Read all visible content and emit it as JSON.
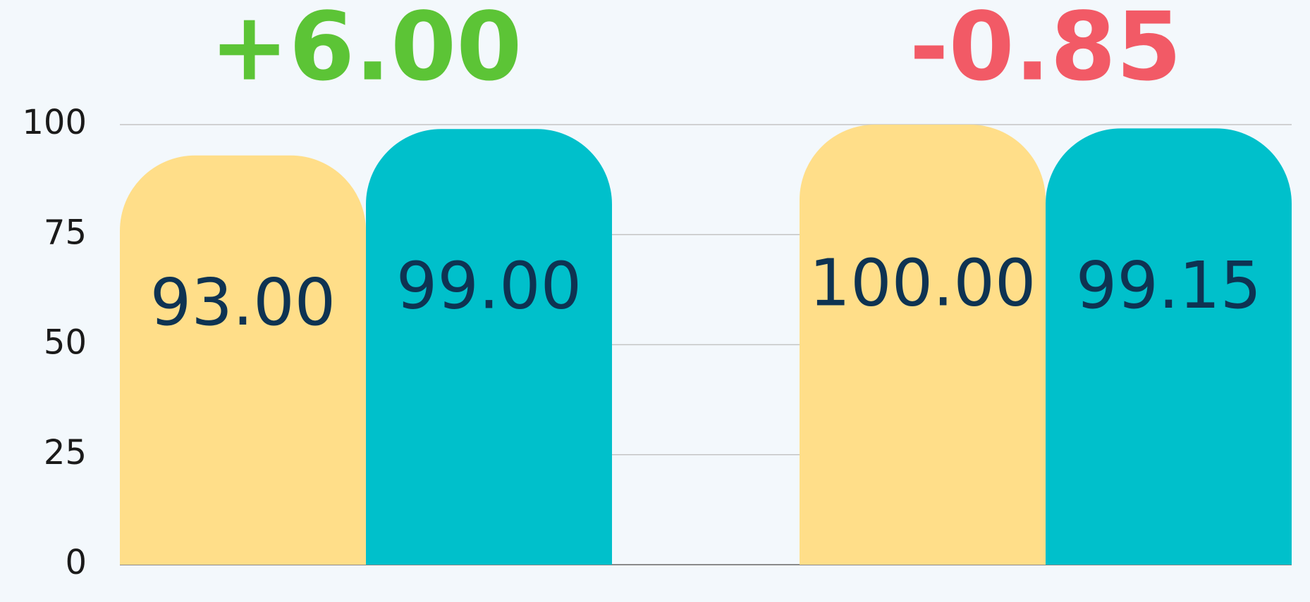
{
  "chart_data": {
    "type": "bar",
    "categories": [
      null,
      null
    ],
    "series": [
      {
        "color": "#ffde89",
        "values": [
          93,
          100
        ],
        "value_labels": [
          "93.00",
          "100.00"
        ]
      },
      {
        "color": "#00c0cb",
        "values": [
          99,
          99.15
        ],
        "value_labels": [
          "99.00",
          "99.15"
        ]
      }
    ],
    "annotations": [
      {
        "text": "+6.00",
        "color": "#5cc436"
      },
      {
        "text": "-0.85",
        "color": "#f25a66"
      }
    ],
    "ylim": [
      0,
      100
    ],
    "yticks": [
      0,
      25,
      50,
      75,
      100
    ],
    "grid": true
  }
}
